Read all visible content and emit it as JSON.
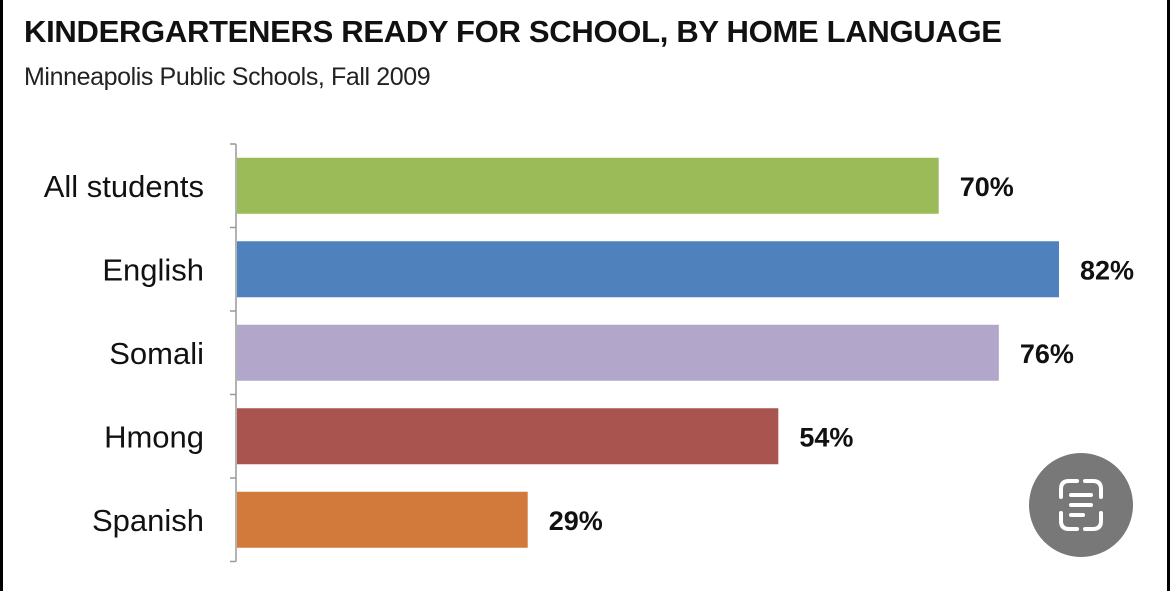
{
  "chart_data": {
    "type": "bar",
    "orientation": "horizontal",
    "title": "KINDERGARTENERS READY FOR SCHOOL, BY HOME LANGUAGE",
    "subtitle": "Minneapolis Public Schools, Fall 2009",
    "categories": [
      "All students",
      "English",
      "Somali",
      "Hmong",
      "Spanish"
    ],
    "values": [
      70,
      82,
      76,
      54,
      29
    ],
    "value_labels": [
      "70%",
      "82%",
      "76%",
      "54%",
      "29%"
    ],
    "colors": [
      "#9bbb59",
      "#4f81bd",
      "#b3a6cb",
      "#aa5450",
      "#d27a3c"
    ],
    "xlim": [
      0,
      82
    ],
    "grid": false,
    "legend": "none"
  },
  "overlay": {
    "icon": "text-scan-icon",
    "icon_color": "#ffffff"
  }
}
